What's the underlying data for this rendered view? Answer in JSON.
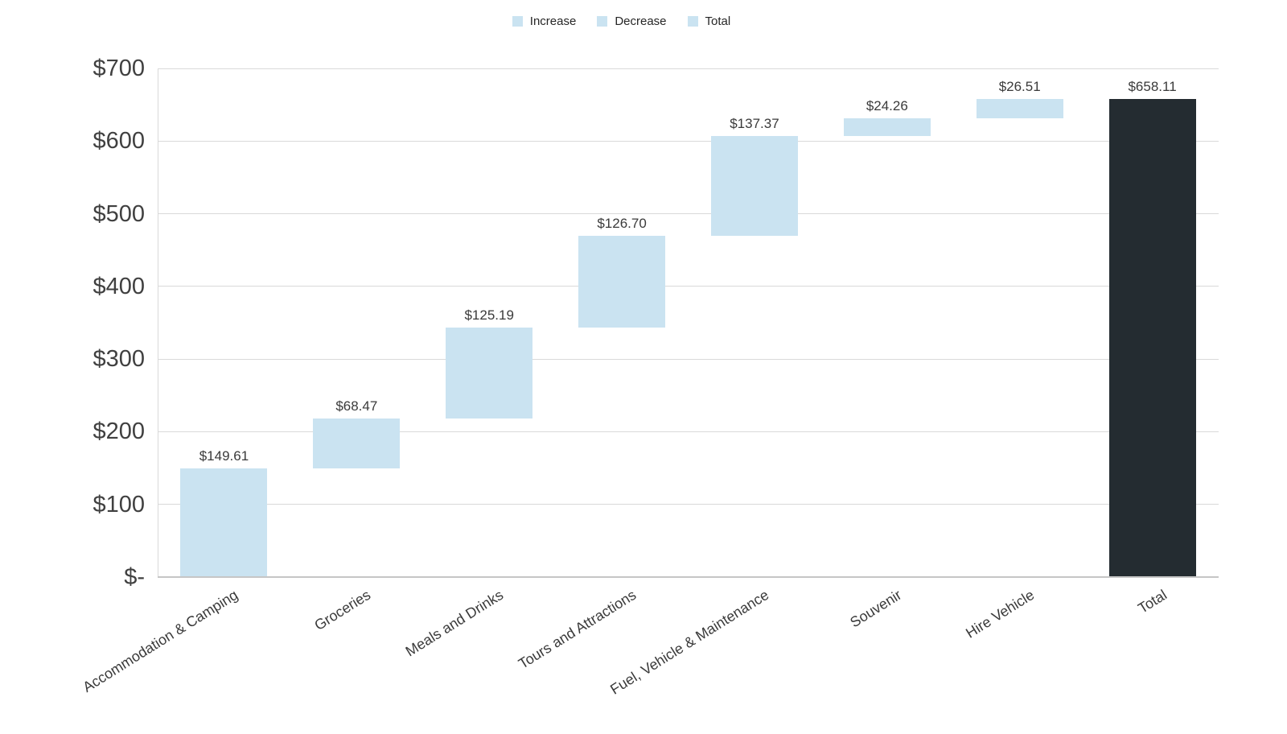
{
  "legend": {
    "items": [
      {
        "label": "Increase",
        "color": "#cae3f1"
      },
      {
        "label": "Decrease",
        "color": "#cae3f1"
      },
      {
        "label": "Total",
        "color": "#cae3f1"
      }
    ]
  },
  "colors": {
    "increase": "#cae3f1",
    "decrease": "#cae3f1",
    "total": "#242c31",
    "gridline": "#d9d9d9",
    "axis_line": "#c6c6c6",
    "tick_text": "#404040",
    "label_text": "#3a3a3a"
  },
  "chart_data": {
    "type": "bar",
    "subtype": "waterfall",
    "title": "",
    "xlabel": "",
    "ylabel": "",
    "categories": [
      "Accommodation & Camping",
      "Groceries",
      "Meals and Drinks",
      "Tours and Attractions",
      "Fuel, Vehicle & Maintenance",
      "Souvenir",
      "Hire Vehicle",
      "Total"
    ],
    "values": [
      149.61,
      68.47,
      125.19,
      126.7,
      137.37,
      24.26,
      26.51,
      658.11
    ],
    "bar_kinds": [
      "increase",
      "increase",
      "increase",
      "increase",
      "increase",
      "increase",
      "increase",
      "total"
    ],
    "data_labels": [
      "$149.61",
      "$68.47",
      "$125.19",
      "$126.70",
      "$137.37",
      "$24.26",
      "$26.51",
      "$658.11"
    ],
    "ylim": [
      0,
      700
    ],
    "yticks": [
      {
        "value": 0,
        "label": "$-"
      },
      {
        "value": 100,
        "label": "$100"
      },
      {
        "value": 200,
        "label": "$200"
      },
      {
        "value": 300,
        "label": "$300"
      },
      {
        "value": 400,
        "label": "$400"
      },
      {
        "value": 500,
        "label": "$500"
      },
      {
        "value": 600,
        "label": "$600"
      },
      {
        "value": 700,
        "label": "$700"
      }
    ],
    "grid": true,
    "legend_position": "top",
    "legend_entries": [
      "Increase",
      "Decrease",
      "Total"
    ]
  }
}
